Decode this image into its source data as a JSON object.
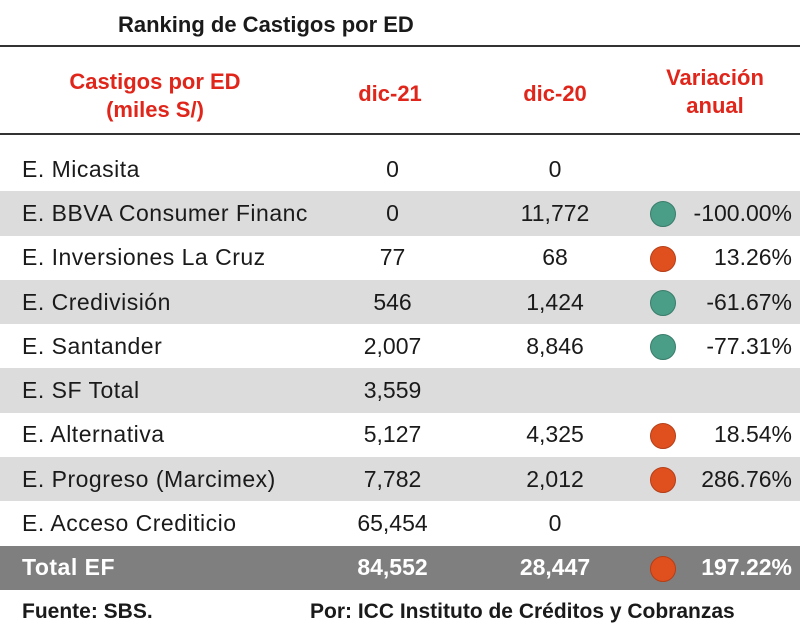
{
  "title": "Ranking de Castigos por ED",
  "headers": {
    "entity_line1": "Castigos por ED",
    "entity_line2": "(miles S/)",
    "col1": "dic-21",
    "col2": "dic-20",
    "var_line1": "Variación",
    "var_line2": "anual"
  },
  "rows": [
    {
      "name": "E. Micasita",
      "dic21": "0",
      "dic20": "0",
      "status": "",
      "variation": ""
    },
    {
      "name": "E. BBVA Consumer Financ",
      "dic21": "0",
      "dic20": "11,772",
      "status": "good",
      "variation": "-100.00%"
    },
    {
      "name": "E. Inversiones La Cruz",
      "dic21": "77",
      "dic20": "68",
      "status": "bad",
      "variation": "13.26%"
    },
    {
      "name": "E. Credivisión",
      "dic21": "546",
      "dic20": "1,424",
      "status": "good",
      "variation": "-61.67%"
    },
    {
      "name": "E. Santander",
      "dic21": "2,007",
      "dic20": "8,846",
      "status": "good",
      "variation": "-77.31%"
    },
    {
      "name": "E. SF Total",
      "dic21": "3,559",
      "dic20": "",
      "status": "",
      "variation": ""
    },
    {
      "name": "E. Alternativa",
      "dic21": "5,127",
      "dic20": "4,325",
      "status": "bad",
      "variation": "18.54%"
    },
    {
      "name": "E. Progreso (Marcimex)",
      "dic21": "7,782",
      "dic20": "2,012",
      "status": "bad",
      "variation": "286.76%"
    },
    {
      "name": "E. Acceso Crediticio",
      "dic21": "65,454",
      "dic20": "0",
      "status": "",
      "variation": ""
    }
  ],
  "total": {
    "name": "Total EF",
    "dic21": "84,552",
    "dic20": "28,447",
    "status": "bad",
    "variation": "197.22%"
  },
  "footer": {
    "source": "Fuente: SBS.",
    "author": "Por: ICC Instituto de Créditos y Cobranzas"
  },
  "colors": {
    "good": "#4a9d86",
    "bad": "#e0501f",
    "header_text": "#e0261b",
    "total_bg": "#7f7f7f"
  }
}
